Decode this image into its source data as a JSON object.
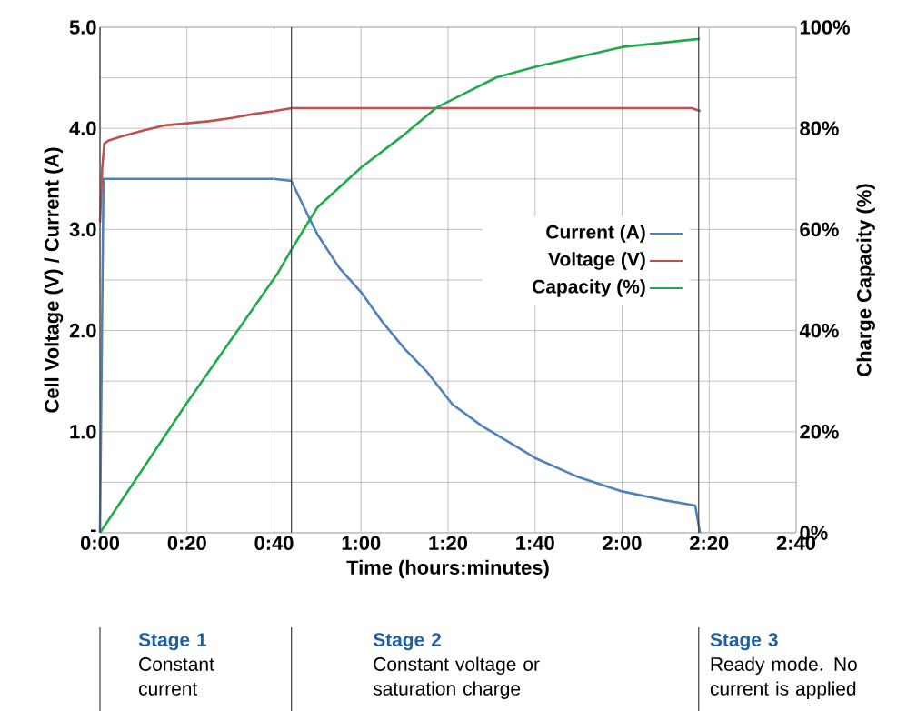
{
  "chart_data": {
    "type": "line",
    "xlabel": "Time (hours:minutes)",
    "ylabel": "Cell Voltage (V) / Current (A)",
    "y2label": "Charge Capacity (%)",
    "xlim": [
      0,
      160
    ],
    "ylim": [
      0,
      5
    ],
    "y2lim": [
      0,
      100
    ],
    "xticks": [
      {
        "value": 0,
        "label": "0:00"
      },
      {
        "value": 20,
        "label": "0:20"
      },
      {
        "value": 40,
        "label": "0:40"
      },
      {
        "value": 60,
        "label": "1:00"
      },
      {
        "value": 80,
        "label": "1:20"
      },
      {
        "value": 100,
        "label": "1:40"
      },
      {
        "value": 120,
        "label": "2:00"
      },
      {
        "value": 140,
        "label": "2:20"
      },
      {
        "value": 160,
        "label": "2:40"
      }
    ],
    "yticks": [
      {
        "value": 0,
        "label": "-"
      },
      {
        "value": 0.5,
        "label": null
      },
      {
        "value": 1,
        "label": "1.0"
      },
      {
        "value": 1.5,
        "label": null
      },
      {
        "value": 2,
        "label": "2.0"
      },
      {
        "value": 2.5,
        "label": null
      },
      {
        "value": 3,
        "label": "3.0"
      },
      {
        "value": 3.5,
        "label": null
      },
      {
        "value": 4,
        "label": "4.0"
      },
      {
        "value": 4.5,
        "label": null
      },
      {
        "value": 5,
        "label": "5.0"
      }
    ],
    "y2ticks": [
      {
        "value": 0,
        "label": "0%"
      },
      {
        "value": 20,
        "label": "20%"
      },
      {
        "value": 40,
        "label": "40%"
      },
      {
        "value": 60,
        "label": "60%"
      },
      {
        "value": 80,
        "label": "80%"
      },
      {
        "value": 100,
        "label": "100%"
      }
    ],
    "grid": true,
    "legend": "right",
    "series": [
      {
        "name": "Current (A)",
        "color": "#4f81bd",
        "x": [
          0,
          0.8,
          10,
          20,
          30,
          40,
          44,
          48,
          50,
          55,
          60,
          65,
          70,
          75,
          81,
          88,
          95,
          100,
          110,
          120,
          130,
          136.8,
          137.9
        ],
        "values": [
          0,
          3.5,
          3.5,
          3.5,
          3.5,
          3.5,
          3.48,
          3.12,
          2.95,
          2.62,
          2.38,
          2.08,
          1.82,
          1.6,
          1.27,
          1.05,
          0.87,
          0.74,
          0.55,
          0.41,
          0.32,
          0.27,
          0
        ]
      },
      {
        "name": "Voltage (V)",
        "color": "#c0504d",
        "x": [
          0,
          0.5,
          1,
          2,
          5,
          10,
          15,
          20,
          25,
          30,
          35,
          40,
          44,
          60,
          80,
          100,
          120,
          136,
          138
        ],
        "values": [
          3.07,
          3.6,
          3.85,
          3.88,
          3.92,
          3.98,
          4.03,
          4.05,
          4.07,
          4.1,
          4.14,
          4.17,
          4.2,
          4.2,
          4.2,
          4.2,
          4.2,
          4.2,
          4.17
        ]
      },
      {
        "name": "Capacity (%)",
        "color": "#1faa4e",
        "axis": "y2",
        "x": [
          0,
          20,
          40.9,
          44.2,
          50,
          60.2,
          70,
          77.3,
          91.2,
          100.3,
          120.1,
          137.9
        ],
        "values": [
          0,
          25.7,
          51.4,
          56.3,
          64.4,
          72.4,
          78.8,
          84.1,
          90.1,
          92.2,
          96.1,
          97.7
        ]
      }
    ],
    "ref_lines": [
      {
        "axis": "x",
        "value": 0,
        "color": "#404040"
      },
      {
        "axis": "x",
        "value": 44,
        "color": "#404040"
      },
      {
        "axis": "x",
        "value": 137.6,
        "color": "#404040"
      }
    ],
    "annotations": [
      "Stage 1",
      "Constant current",
      "Stage 2",
      "Constant voltage or saturation charge",
      "Stage 3",
      "Ready mode. No current is applied"
    ]
  }
}
